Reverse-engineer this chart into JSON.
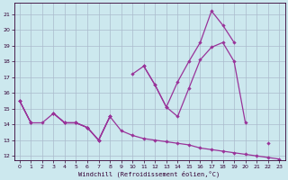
{
  "xlabel": "Windchill (Refroidissement éolien,°C)",
  "background_color": "#cce8ee",
  "grid_color": "#aabbcc",
  "line_color": "#993399",
  "xlim": [
    -0.5,
    23.5
  ],
  "ylim": [
    11.7,
    21.7
  ],
  "yticks": [
    12,
    13,
    14,
    15,
    16,
    17,
    18,
    19,
    20,
    21
  ],
  "xticks": [
    0,
    1,
    2,
    3,
    4,
    5,
    6,
    7,
    8,
    9,
    10,
    11,
    12,
    13,
    14,
    15,
    16,
    17,
    18,
    19,
    20,
    21,
    22,
    23
  ],
  "hours": [
    0,
    1,
    2,
    3,
    4,
    5,
    6,
    7,
    8,
    9,
    10,
    11,
    12,
    13,
    14,
    15,
    16,
    17,
    18,
    19,
    20,
    21,
    22,
    23
  ],
  "line_top": [
    15.5,
    14.1,
    null,
    14.7,
    14.1,
    14.1,
    13.8,
    13.0,
    14.5,
    null,
    null,
    17.7,
    16.5,
    15.1,
    16.7,
    18.0,
    19.2,
    21.2,
    20.3,
    19.2,
    null,
    null,
    null,
    null
  ],
  "line_mid": [
    15.5,
    14.1,
    null,
    14.7,
    14.1,
    14.1,
    13.8,
    13.0,
    14.5,
    null,
    17.2,
    17.7,
    16.5,
    15.1,
    14.5,
    16.3,
    18.1,
    18.9,
    19.2,
    18.0,
    14.1,
    null,
    12.8,
    null
  ],
  "line_bot": [
    15.5,
    14.1,
    14.1,
    14.7,
    14.1,
    14.1,
    13.8,
    13.0,
    14.5,
    13.6,
    13.3,
    13.1,
    13.0,
    12.9,
    12.8,
    12.7,
    12.5,
    12.4,
    12.3,
    12.2,
    12.1,
    12.0,
    11.9,
    11.8
  ]
}
